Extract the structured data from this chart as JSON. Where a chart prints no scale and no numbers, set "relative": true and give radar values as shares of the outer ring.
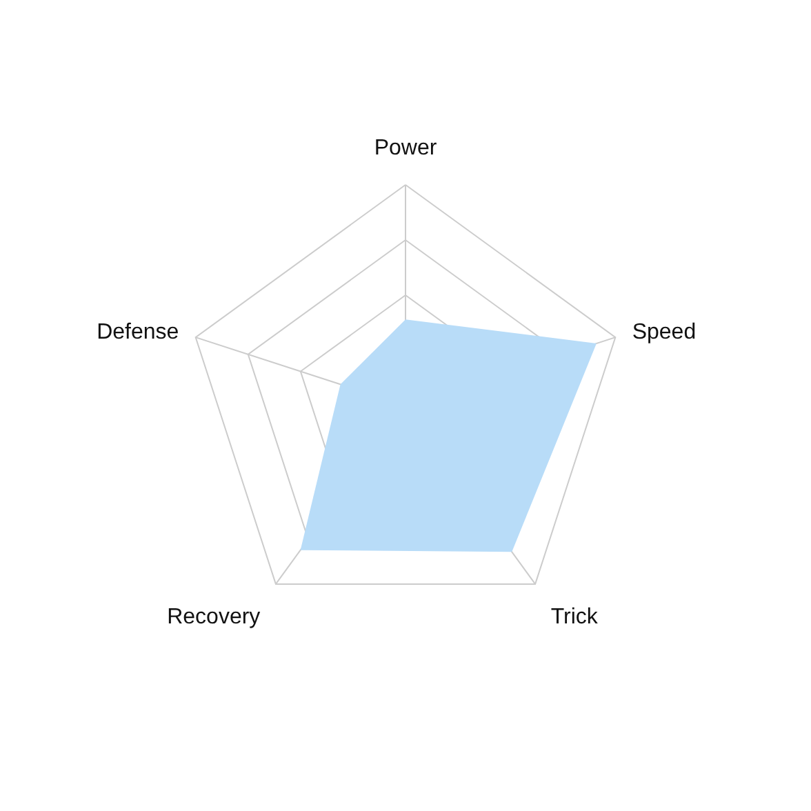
{
  "chart_data": {
    "type": "radar",
    "relative": true,
    "grid": true,
    "categories": [
      "Power",
      "Speed",
      "Trick",
      "Recovery",
      "Defense"
    ],
    "series": [
      {
        "color": "#b8dcf8",
        "values": [
          0.39,
          0.91,
          0.82,
          0.81,
          0.31
        ]
      }
    ]
  }
}
